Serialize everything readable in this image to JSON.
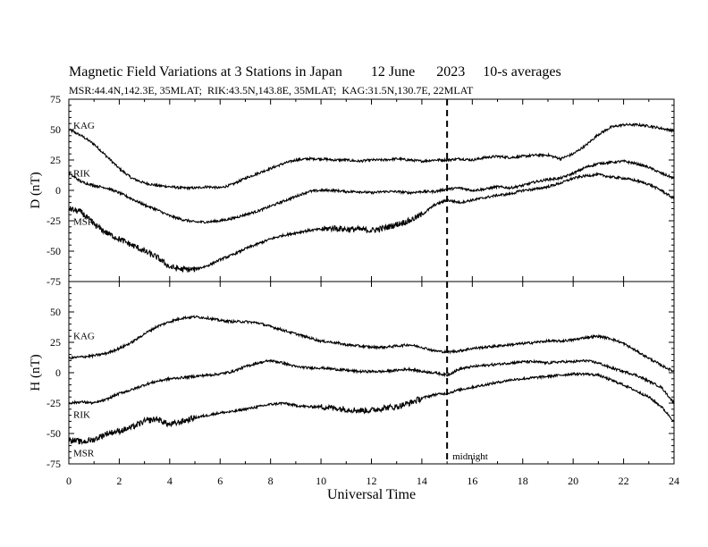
{
  "header": {
    "title": "Magnetic Field Variations at 3 Stations in Japan",
    "date": "12 June",
    "year": "2023",
    "averaging": "10-s averages",
    "stations": "MSR:44.4N,142.3E, 35MLAT;  RIK:43.5N,143.8E, 35MLAT;  KAG:31.5N,130.7E, 22MLAT"
  },
  "chart_data": [
    {
      "type": "line",
      "panel": "D",
      "ylabel": "D (nT)",
      "ylim": [
        -75,
        75
      ],
      "yticks": [
        75,
        50,
        25,
        0,
        -25,
        -50,
        -75
      ],
      "xlim": [
        0,
        24
      ],
      "x": [
        0,
        0.5,
        1,
        1.5,
        2,
        2.5,
        3,
        3.5,
        4,
        4.5,
        5,
        5.5,
        6,
        6.5,
        7,
        7.5,
        8,
        8.5,
        9,
        9.5,
        10,
        10.5,
        11,
        11.5,
        12,
        12.5,
        13,
        13.5,
        14,
        14.5,
        15,
        15.5,
        16,
        16.5,
        17,
        17.5,
        18,
        18.5,
        19,
        19.5,
        20,
        20.5,
        21,
        21.5,
        22,
        22.5,
        23,
        23.5,
        24
      ],
      "series": [
        {
          "name": "KAG",
          "values": [
            50,
            45,
            38,
            28,
            18,
            10,
            6,
            4,
            3,
            2,
            2,
            3,
            2,
            5,
            10,
            14,
            18,
            22,
            25,
            26,
            26,
            25,
            25,
            24,
            25,
            25,
            26,
            25,
            24,
            25,
            25,
            26,
            25,
            27,
            28,
            27,
            28,
            29,
            29,
            26,
            30,
            37,
            46,
            52,
            54,
            54,
            53,
            51,
            49
          ]
        },
        {
          "name": "RIK",
          "values": [
            14,
            7,
            4,
            2,
            -2,
            -7,
            -12,
            -16,
            -21,
            -24,
            -26,
            -26,
            -25,
            -23,
            -20,
            -17,
            -13,
            -9,
            -5,
            -1,
            0,
            0,
            -1,
            -1,
            -2,
            -1,
            -1,
            -2,
            -1,
            -1,
            1,
            2,
            0,
            1,
            3,
            2,
            4,
            7,
            9,
            10,
            14,
            19,
            22,
            23,
            24,
            22,
            19,
            14,
            10
          ]
        },
        {
          "name": "MSR",
          "values": [
            -15,
            -18,
            -28,
            -35,
            -40,
            -45,
            -50,
            -55,
            -63,
            -65,
            -65,
            -62,
            -57,
            -53,
            -48,
            -44,
            -40,
            -37,
            -35,
            -33,
            -32,
            -31,
            -32,
            -32,
            -33,
            -31,
            -28,
            -25,
            -20,
            -12,
            -8,
            -10,
            -8,
            -6,
            -4,
            -3,
            0,
            1,
            3,
            6,
            10,
            12,
            13,
            11,
            10,
            8,
            5,
            0,
            -7
          ]
        }
      ]
    },
    {
      "type": "line",
      "panel": "H",
      "ylabel": "H (nT)",
      "ylim": [
        -75,
        75
      ],
      "yticks": [
        75,
        50,
        25,
        0,
        -25,
        -50,
        -75
      ],
      "xlim": [
        0,
        24
      ],
      "x": [
        0,
        0.5,
        1,
        1.5,
        2,
        2.5,
        3,
        3.5,
        4,
        4.5,
        5,
        5.5,
        6,
        6.5,
        7,
        7.5,
        8,
        8.5,
        9,
        9.5,
        10,
        10.5,
        11,
        11.5,
        12,
        12.5,
        13,
        13.5,
        14,
        14.5,
        15,
        15.5,
        16,
        16.5,
        17,
        17.5,
        18,
        18.5,
        19,
        19.5,
        20,
        20.5,
        21,
        21.5,
        22,
        22.5,
        23,
        23.5,
        24
      ],
      "series": [
        {
          "name": "KAG",
          "values": [
            12,
            13,
            14,
            16,
            20,
            25,
            32,
            38,
            42,
            45,
            46,
            45,
            43,
            42,
            42,
            41,
            38,
            35,
            32,
            29,
            26,
            25,
            23,
            22,
            21,
            21,
            22,
            23,
            21,
            18,
            17,
            18,
            20,
            21,
            22,
            23,
            24,
            25,
            26,
            26,
            27,
            29,
            30,
            28,
            24,
            18,
            12,
            6,
            1
          ]
        },
        {
          "name": "RIK",
          "values": [
            -25,
            -24,
            -25,
            -22,
            -17,
            -14,
            -10,
            -7,
            -5,
            -4,
            -3,
            -2,
            -1,
            1,
            5,
            8,
            10,
            8,
            5,
            4,
            4,
            3,
            2,
            1,
            1,
            1,
            2,
            3,
            1,
            0,
            -2,
            3,
            5,
            6,
            7,
            8,
            9,
            9,
            8,
            9,
            9,
            10,
            8,
            4,
            1,
            -2,
            -7,
            -12,
            -25
          ]
        },
        {
          "name": "MSR",
          "values": [
            -55,
            -57,
            -55,
            -50,
            -48,
            -45,
            -40,
            -38,
            -43,
            -40,
            -37,
            -35,
            -33,
            -32,
            -30,
            -28,
            -26,
            -25,
            -27,
            -28,
            -28,
            -29,
            -30,
            -31,
            -31,
            -29,
            -28,
            -25,
            -21,
            -18,
            -17,
            -14,
            -12,
            -10,
            -8,
            -6,
            -5,
            -4,
            -3,
            -2,
            -1,
            -1,
            -2,
            -6,
            -10,
            -15,
            -20,
            -28,
            -40
          ]
        }
      ]
    }
  ],
  "xaxis": {
    "label": "Universal Time",
    "ticks": [
      0,
      2,
      4,
      6,
      8,
      10,
      12,
      14,
      16,
      18,
      20,
      22,
      24
    ]
  },
  "midnight": {
    "x": 15,
    "label": "midnight"
  }
}
